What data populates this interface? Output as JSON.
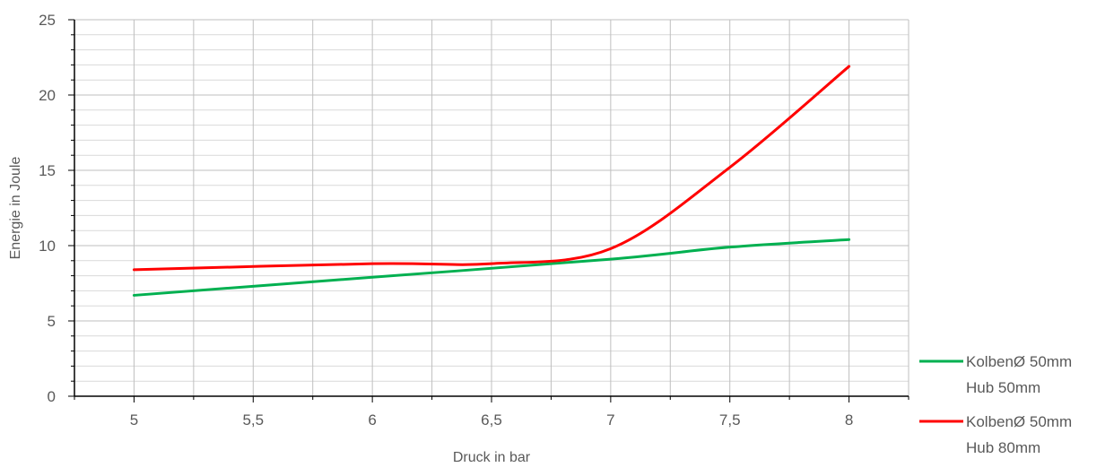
{
  "chart_data": {
    "type": "line",
    "xlabel": "Druck in bar",
    "ylabel": "Energie  in Joule",
    "xlim": [
      4.75,
      8.25
    ],
    "ylim": [
      0,
      25
    ],
    "x_ticks": [
      "5",
      "5,5",
      "6",
      "6,5",
      "7",
      "7,5",
      "8"
    ],
    "x_tick_values": [
      5,
      5.5,
      6,
      6.5,
      7,
      7.5,
      8
    ],
    "y_ticks": [
      "0",
      "5",
      "10",
      "15",
      "20",
      "25"
    ],
    "y_tick_values": [
      0,
      5,
      10,
      15,
      20,
      25
    ],
    "grid": true,
    "legend_position": "right",
    "series": [
      {
        "name": "KolbenØ 50mm Hub 50mm",
        "name_lines": [
          "KolbenØ 50mm",
          "Hub 50mm"
        ],
        "color": "#00b050",
        "x": [
          5,
          6,
          7,
          7.5,
          8
        ],
        "y": [
          6.7,
          7.9,
          9.1,
          9.9,
          10.4
        ]
      },
      {
        "name": "KolbenØ 50mm Hub 80mm",
        "name_lines": [
          "KolbenØ 50mm",
          "Hub 80mm"
        ],
        "color": "#ff0000",
        "x": [
          5,
          6,
          6.5,
          7,
          7.5,
          8
        ],
        "y": [
          8.4,
          8.8,
          8.8,
          9.8,
          15.2,
          21.9
        ]
      }
    ]
  }
}
